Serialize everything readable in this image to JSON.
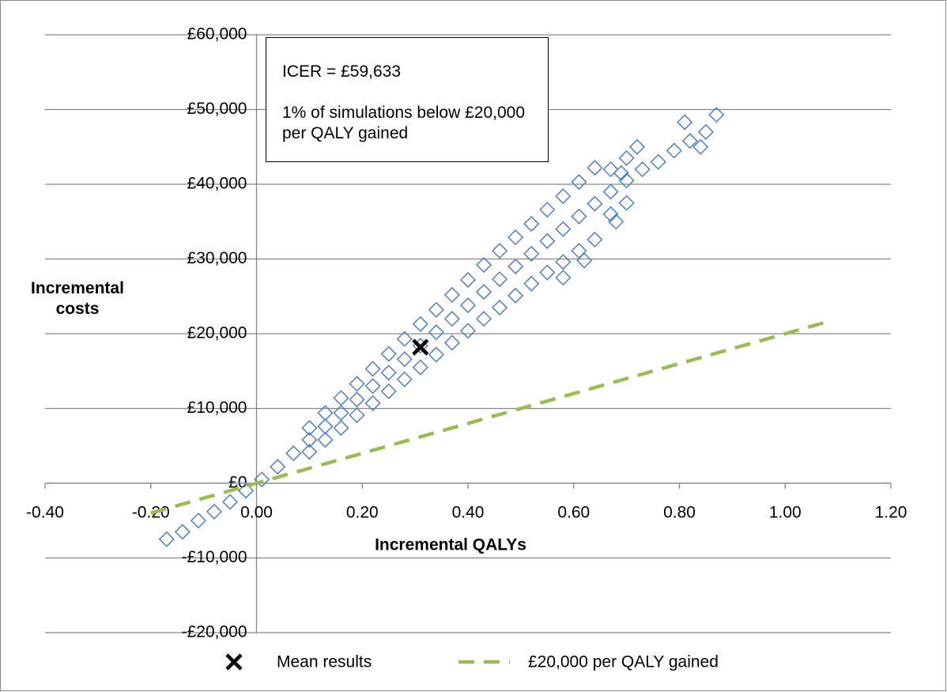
{
  "chart_data": {
    "type": "scatter",
    "xlabel": "Incremental QALYs",
    "ylabel": "Incremental costs",
    "annotations": [
      "ICER = £59,633",
      "1% of simulations below £20,000 per QALY gained"
    ],
    "xlim": [
      -0.4,
      1.2
    ],
    "ylim": [
      -20000,
      60000
    ],
    "xticks": [
      {
        "value": -0.4,
        "label": "-0.40"
      },
      {
        "value": -0.2,
        "label": "-0.20"
      },
      {
        "value": 0,
        "label": "0.00"
      },
      {
        "value": 0.2,
        "label": "0.20"
      },
      {
        "value": 0.4,
        "label": "0.40"
      },
      {
        "value": 0.6,
        "label": "0.60"
      },
      {
        "value": 0.8,
        "label": "0.80"
      },
      {
        "value": 1.0,
        "label": "1.00"
      },
      {
        "value": 1.2,
        "label": "1.20"
      }
    ],
    "yticks": [
      {
        "value": -20000,
        "label": "-£20,000"
      },
      {
        "value": -10000,
        "label": "-£10,000"
      },
      {
        "value": 0,
        "label": "£0"
      },
      {
        "value": 10000,
        "label": "£10,000"
      },
      {
        "value": 20000,
        "label": "£20,000"
      },
      {
        "value": 30000,
        "label": "£30,000"
      },
      {
        "value": 40000,
        "label": "£40,000"
      },
      {
        "value": 50000,
        "label": "£50,000"
      },
      {
        "value": 60000,
        "label": "£60,000"
      }
    ],
    "grid": true,
    "simulations": {
      "color": "#4f81bd",
      "x": [
        -0.17,
        -0.14,
        -0.11,
        -0.08,
        -0.05,
        -0.02,
        0.01,
        0.04,
        0.07,
        0.1,
        0.13,
        0.16,
        0.19,
        0.22,
        0.25,
        0.28,
        0.31,
        0.34,
        0.37,
        0.4,
        0.43,
        0.46,
        0.49,
        0.52,
        0.55,
        0.58,
        0.61,
        0.64,
        0.67,
        0.7,
        0.73,
        0.76,
        0.79,
        0.82,
        0.85,
        0.1,
        0.13,
        0.16,
        0.19,
        0.22,
        0.25,
        0.28,
        0.31,
        0.34,
        0.37,
        0.4,
        0.43,
        0.46,
        0.49,
        0.52,
        0.55,
        0.58,
        0.61,
        0.64,
        0.67,
        0.7,
        0.1,
        0.13,
        0.16,
        0.19,
        0.22,
        0.25,
        0.28,
        0.31,
        0.34,
        0.37,
        0.4,
        0.43,
        0.46,
        0.49,
        0.52,
        0.55,
        0.58,
        0.61,
        0.64,
        0.67,
        0.7,
        0.69,
        0.72,
        0.81,
        0.87,
        0.84,
        0.62,
        0.58,
        0.68
      ],
      "y": [
        -7500,
        -6500,
        -5000,
        -3800,
        -2500,
        -1000,
        500,
        2200,
        4000,
        5800,
        7600,
        9400,
        11200,
        13000,
        14800,
        16600,
        18400,
        20200,
        22000,
        23800,
        25600,
        27300,
        29000,
        30700,
        32400,
        34000,
        35700,
        37400,
        39000,
        40500,
        42000,
        43000,
        44500,
        45800,
        47000,
        7400,
        9400,
        11400,
        13300,
        15300,
        17300,
        19300,
        21300,
        23200,
        25200,
        27200,
        29200,
        31100,
        32900,
        34700,
        36600,
        38400,
        40300,
        42200,
        42000,
        43500,
        4200,
        5800,
        7400,
        9100,
        10700,
        12300,
        13900,
        15500,
        17200,
        18800,
        20400,
        22000,
        23500,
        25100,
        26700,
        28200,
        29600,
        31100,
        32600,
        36000,
        37500,
        41500,
        45000,
        48300,
        49300,
        45000,
        29800,
        27500,
        35000
      ]
    },
    "mean": {
      "name": "Mean results",
      "x": 0.31,
      "y": 18200,
      "color": "#000000"
    },
    "threshold": {
      "name": "£20,000 per QALY gained",
      "x": [
        -0.2,
        1.08
      ],
      "y": [
        -4000,
        21600
      ],
      "color": "#9bbb59"
    }
  }
}
